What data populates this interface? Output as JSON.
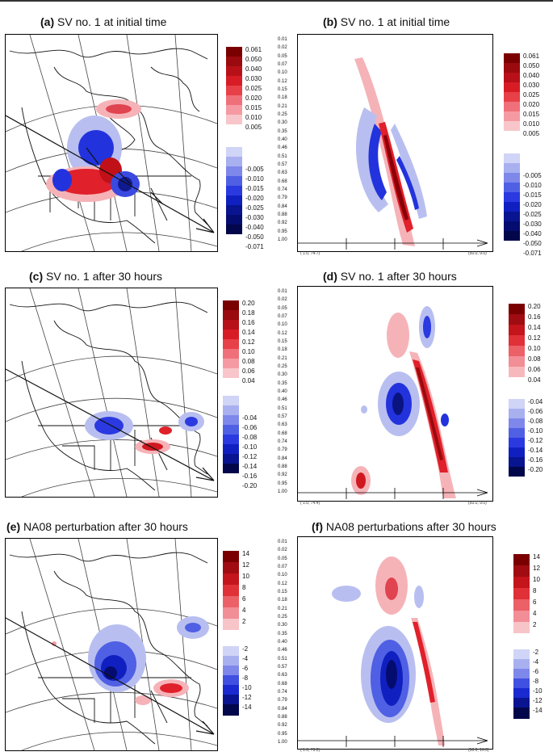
{
  "panels": [
    {
      "letter": "(a)",
      "title": "SV no. 1 at initial time",
      "colorbar": [
        "0.061",
        "0.050",
        "0.040",
        "0.030",
        "0.025",
        "0.020",
        "0.015",
        "0.010",
        "0.005",
        "-0.005",
        "-0.010",
        "-0.015",
        "-0.020",
        "-0.025",
        "-0.030",
        "-0.040",
        "-0.050",
        "-0.071"
      ]
    },
    {
      "letter": "(b)",
      "title": "SV no. 1 at initial time",
      "colorbar": [
        "0.061",
        "0.050",
        "0.040",
        "0.030",
        "0.025",
        "0.020",
        "0.015",
        "0.010",
        "0.005",
        "-0.005",
        "-0.010",
        "-0.015",
        "-0.020",
        "-0.025",
        "-0.030",
        "-0.040",
        "-0.050",
        "-0.071"
      ],
      "axis_start": "( 1.0, 74.7)",
      "axis_end": "(50.0, 9.0)"
    },
    {
      "letter": "(c)",
      "title": "SV no. 1 after 30 hours",
      "colorbar": [
        "0.20",
        "0.18",
        "0.16",
        "0.14",
        "0.12",
        "0.10",
        "0.08",
        "0.06",
        "0.04",
        "-0.04",
        "-0.06",
        "-0.08",
        "-0.10",
        "-0.12",
        "-0.14",
        "-0.16",
        "-0.20"
      ]
    },
    {
      "letter": "(d)",
      "title": "SV no. 1 after 30 hours",
      "colorbar": [
        "0.20",
        "0.16",
        "0.14",
        "0.12",
        "0.10",
        "0.08",
        "0.06",
        "0.04",
        "-0.04",
        "-0.06",
        "-0.08",
        "-0.10",
        "-0.12",
        "-0.14",
        "-0.16",
        "-0.20"
      ],
      "axis_start": "( 1.0, 74.4)",
      "axis_end": "(50.0, 9.0)"
    },
    {
      "letter": "(e)",
      "title": "NA08 perturbation after 30 hours",
      "colorbar": [
        "14",
        "12",
        "10",
        "8",
        "6",
        "4",
        "2",
        "-2",
        "-4",
        "-6",
        "-8",
        "-10",
        "-12",
        "-14"
      ]
    },
    {
      "letter": "(f)",
      "title": "NA08 perturbations after 30 hours",
      "colorbar": [
        "14",
        "12",
        "10",
        "8",
        "6",
        "4",
        "2",
        "-2",
        "-4",
        "-6",
        "-8",
        "-10",
        "-12",
        "-14"
      ],
      "axis_start": "( 1.0, 73.2)",
      "axis_end": "(50.0, 10.0)"
    }
  ],
  "sigma_levels": [
    "0.01",
    "0.02",
    "0.05",
    "0.07",
    "0.10",
    "0.12",
    "0.15",
    "0.18",
    "0.21",
    "0.25",
    "0.30",
    "0.35",
    "0.40",
    "0.46",
    "0.51",
    "0.57",
    "0.63",
    "0.68",
    "0.74",
    "0.79",
    "0.84",
    "0.88",
    "0.92",
    "0.95",
    "1.00"
  ],
  "colors": {
    "red_dark": "#7a0000",
    "red_mid": "#e0202a",
    "red_light": "#f5b3b8",
    "blue_light": "#b8bff0",
    "blue_mid": "#2233dd",
    "blue_dark": "#000a6e"
  }
}
